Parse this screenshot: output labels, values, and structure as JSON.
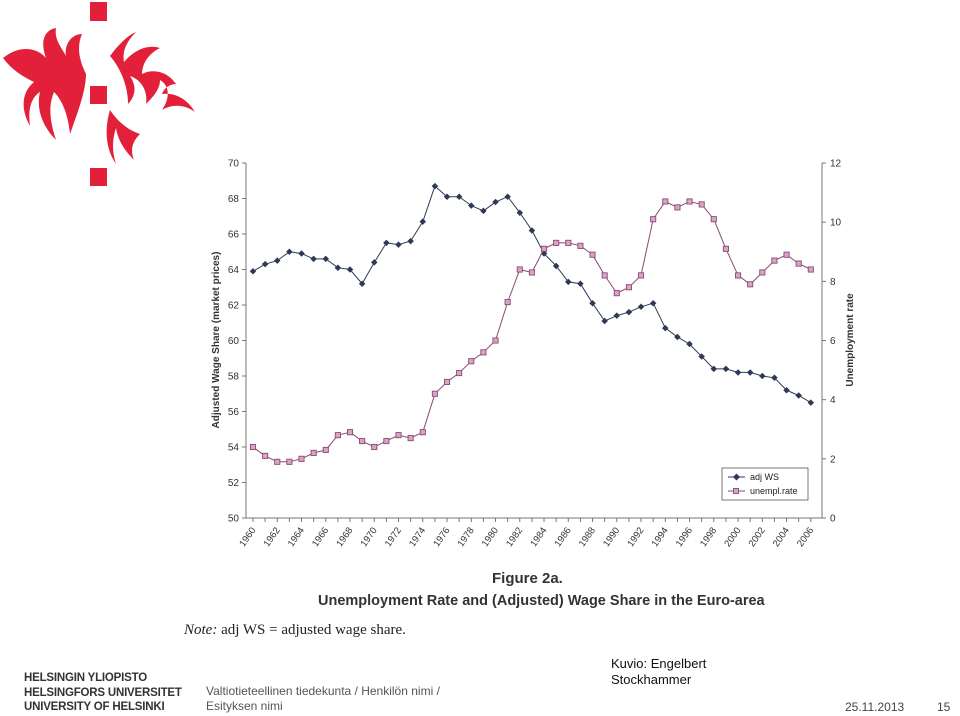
{
  "header": {
    "logo": {
      "icon": "helsinki-flame-logo-icon",
      "color": "#e2203a"
    }
  },
  "figure": {
    "title": "Figure 2a.",
    "subtitle": "Unemployment Rate and (Adjusted) Wage Share in the Euro-area",
    "note_label": "Note:",
    "note_text": " adj WS = adjusted wage share."
  },
  "chart_data": {
    "type": "line",
    "x": [
      1960,
      1961,
      1962,
      1963,
      1964,
      1965,
      1966,
      1967,
      1968,
      1969,
      1970,
      1971,
      1972,
      1973,
      1974,
      1975,
      1976,
      1977,
      1978,
      1979,
      1980,
      1981,
      1982,
      1983,
      1984,
      1985,
      1986,
      1987,
      1988,
      1989,
      1990,
      1991,
      1992,
      1993,
      1994,
      1995,
      1996,
      1997,
      1998,
      1999,
      2000,
      2001,
      2002,
      2003,
      2004,
      2005,
      2006
    ],
    "x_tick_labels": [
      "1960",
      "1962",
      "1964",
      "1966",
      "1968",
      "1970",
      "1972",
      "1974",
      "1976",
      "1978",
      "1980",
      "1982",
      "1984",
      "1986",
      "1988",
      "1990",
      "1992",
      "1994",
      "1996",
      "1998",
      "2000",
      "2002",
      "2004",
      "2006"
    ],
    "y_left": {
      "label": "Adjusted Wage Share (market prices)",
      "min": 50,
      "max": 70,
      "ticks": [
        50,
        52,
        54,
        56,
        58,
        60,
        62,
        64,
        66,
        68,
        70
      ]
    },
    "y_right": {
      "label": "Unemployment rate",
      "min": 0,
      "max": 12,
      "ticks": [
        0,
        2,
        4,
        6,
        8,
        10,
        12
      ]
    },
    "grid": false,
    "legend_position": "bottom-right",
    "series": [
      {
        "name": "adj WS",
        "axis": "left",
        "marker": "diamond",
        "color": "#2e3a55",
        "values": [
          63.9,
          64.3,
          64.5,
          65.0,
          64.9,
          64.6,
          64.6,
          64.1,
          64.0,
          63.2,
          64.4,
          65.5,
          65.4,
          65.6,
          66.7,
          68.7,
          68.1,
          68.1,
          67.6,
          67.3,
          67.8,
          68.1,
          67.2,
          66.2,
          64.9,
          64.2,
          63.3,
          63.2,
          62.1,
          61.1,
          61.4,
          61.6,
          61.9,
          62.1,
          60.7,
          60.2,
          59.8,
          59.1,
          58.4,
          58.4,
          58.2,
          58.2,
          58.0,
          57.9,
          57.2,
          56.9,
          56.5
        ]
      },
      {
        "name": "unempl.rate",
        "axis": "right",
        "marker": "square",
        "color": "#8a4a74",
        "marker_fill": "#d9a3c6",
        "values": [
          2.4,
          2.1,
          1.9,
          1.9,
          2.0,
          2.2,
          2.3,
          2.8,
          2.9,
          2.6,
          2.4,
          2.6,
          2.8,
          2.7,
          2.9,
          4.2,
          4.6,
          4.9,
          5.3,
          5.6,
          6.0,
          7.3,
          8.4,
          8.3,
          9.1,
          9.3,
          9.3,
          9.2,
          8.9,
          8.2,
          7.6,
          7.8,
          8.2,
          10.1,
          10.7,
          10.5,
          10.7,
          10.6,
          10.1,
          9.1,
          8.2,
          7.9,
          8.3,
          8.7,
          8.9,
          8.6,
          8.4
        ]
      }
    ]
  },
  "credit": {
    "line1": "Kuvio: Engelbert",
    "line2": "Stockhammer"
  },
  "footer": {
    "university": [
      "HELSINGIN YLIOPISTO",
      "HELSINGFORS UNIVERSITET",
      "UNIVERSITY OF HELSINKI"
    ],
    "faculty_line1": "Valtiotieteellinen tiedekunta / Henkilön nimi /",
    "faculty_line2": "Esityksen nimi",
    "date": "25.11.2013",
    "page": "15"
  }
}
